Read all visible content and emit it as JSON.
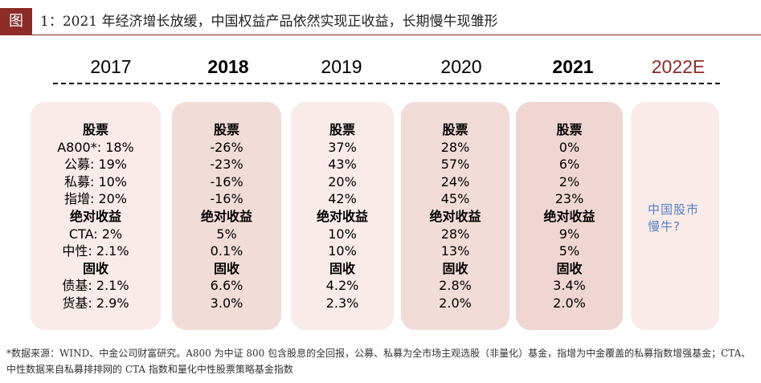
{
  "header": {
    "figure_tag": "图",
    "title": "1：2021 年经济增长放缓，中国权益产品依然实现正收益，长期慢牛现雏形"
  },
  "columns": [
    {
      "year": "2017",
      "rows": [
        "股票",
        "A800*:  18%",
        "公募:  19%",
        "私募:  10%",
        "指增:  20%",
        "绝对收益",
        "CTA:  2%",
        "中性:  2.1%",
        "固收",
        "债基:  2.1%",
        "货基:  2.9%"
      ]
    },
    {
      "year": "2018",
      "rows": [
        "股票",
        "-26%",
        "-23%",
        "-16%",
        "-16%",
        "绝对收益",
        "5%",
        "0.1%",
        "固收",
        "6.6%",
        "3.0%"
      ]
    },
    {
      "year": "2019",
      "rows": [
        "股票",
        "37%",
        "43%",
        "20%",
        "42%",
        "绝对收益",
        "10%",
        "10%",
        "固收",
        "4.2%",
        "2.3%"
      ]
    },
    {
      "year": "2020",
      "rows": [
        "股票",
        "28%",
        "57%",
        "24%",
        "45%",
        "绝对收益",
        "28%",
        "13%",
        "固收",
        "2.8%",
        "2.0%"
      ]
    },
    {
      "year": "2021",
      "rows": [
        "股票",
        "0%",
        "6%",
        "2%",
        "23%",
        "绝对收益",
        "9%",
        "5%",
        "固收",
        "3.4%",
        "2.0%"
      ]
    },
    {
      "year": "2022E",
      "rows": []
    }
  ],
  "forecast_note": "中国股市慢牛?",
  "footnote": "*数据来源：WIND、中金公司财富研究。A800 为中证 800 包含股息的全回报，公募、私募为全市场主观选股（非量化）基金，指增为中金覆盖的私募指数增强基金；CTA、中性数据来自私募排排网的 CTA 指数和量化中性股票策略基金指数",
  "colors": {
    "accent": "#8c2b27",
    "card_light": "#f8ebe9",
    "card_mid": "#f2dcd8",
    "card_dark": "#f0d6d2",
    "forecast_text": "#5a7fbf"
  }
}
